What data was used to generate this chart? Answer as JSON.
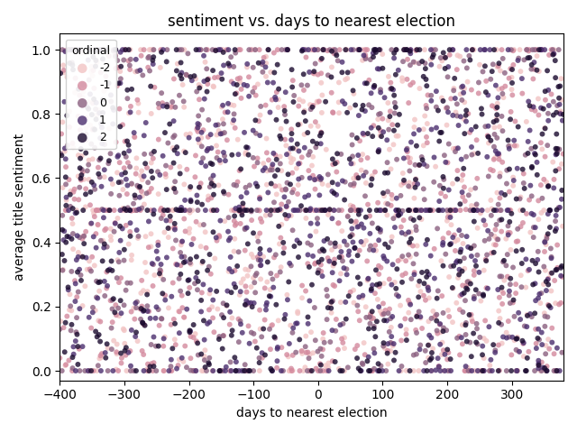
{
  "title": "sentiment vs. days to nearest election",
  "xlabel": "days to nearest election",
  "ylabel": "average title sentiment",
  "xlim": [
    -400,
    380
  ],
  "ylim": [
    -0.03,
    1.05
  ],
  "ordinal_values": [
    -2,
    -1,
    0,
    1,
    2
  ],
  "legend_title": "ordinal",
  "n_points": 3000,
  "seed": 42,
  "colors": {
    "-2": "#f2c4c4",
    "-1": "#d48a9e",
    "0": "#8b6080",
    "1": "#4b2e6e",
    "2": "#1a0a2e"
  },
  "marker_size": 18,
  "alpha": 0.8,
  "xticks": [
    -400,
    -300,
    -200,
    -100,
    0,
    100,
    200,
    300
  ]
}
